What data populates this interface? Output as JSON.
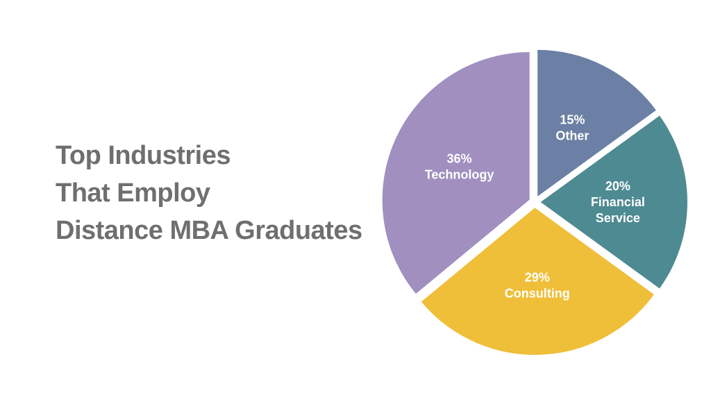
{
  "title": {
    "line1": "Top Industries",
    "line2": "That Employ",
    "line3": "Distance MBA Graduates"
  },
  "chart_data": {
    "type": "pie",
    "categories": [
      "Other",
      "Financial Service",
      "Consulting",
      "Technology"
    ],
    "values": [
      15,
      20,
      29,
      36
    ],
    "labels": [
      {
        "pct": "15%",
        "lines": [
          "Other"
        ]
      },
      {
        "pct": "20%",
        "lines": [
          "Financial",
          "Service"
        ]
      },
      {
        "pct": "29%",
        "lines": [
          "Consulting"
        ]
      },
      {
        "pct": "36%",
        "lines": [
          "Technology"
        ]
      }
    ],
    "colors": [
      "#6b80a4",
      "#4e8a92",
      "#efbf3a",
      "#a08fbf"
    ]
  }
}
